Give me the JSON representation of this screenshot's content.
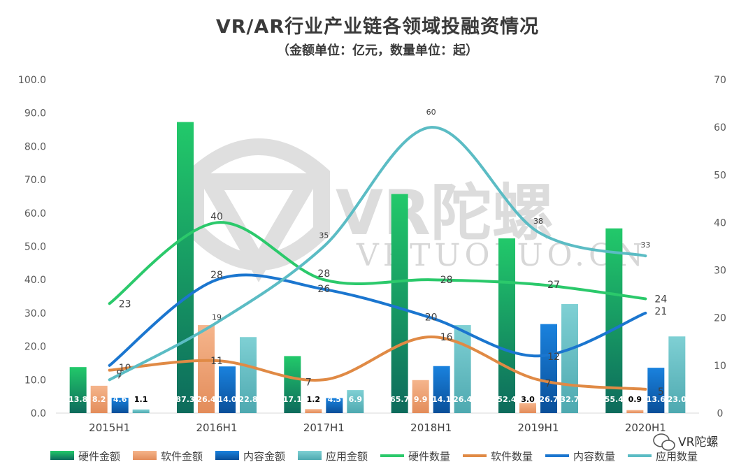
{
  "title": "VR/AR行业产业链各领域投融资情况",
  "subtitle": "（金额单位：亿元，数量单位：起）",
  "watermark": {
    "brand": "VR陀螺",
    "url": "VRTUOLUO.CN"
  },
  "badge": {
    "text": "VR陀螺",
    "icon": "wechat-icon"
  },
  "colors": {
    "hw_amount": "#1fa05a",
    "sw_amount": "#f0a679",
    "content_amount": "#0f6fc6",
    "app_amount": "#6fc3c8",
    "hw_count": "#2bc96b",
    "sw_count": "#e08a45",
    "content_count": "#1b76cf",
    "app_count": "#5bbcc4"
  },
  "chart_data": {
    "type": "bar+line",
    "categories": [
      "2015H1",
      "2016H1",
      "2017H1",
      "2018H1",
      "2019H1",
      "2020H1"
    ],
    "y_left": {
      "min": 0,
      "max": 100,
      "step": 10,
      "ticks": [
        "0.0",
        "10.0",
        "20.0",
        "30.0",
        "40.0",
        "50.0",
        "60.0",
        "70.0",
        "80.0",
        "90.0",
        "100.0"
      ]
    },
    "y_right": {
      "min": 0,
      "max": 70,
      "step": 10,
      "ticks": [
        "0",
        "10",
        "20",
        "30",
        "40",
        "50",
        "60",
        "70"
      ]
    },
    "bar_series": [
      {
        "name": "硬件金额",
        "values": [
          13.8,
          87.3,
          17.1,
          65.7,
          52.4,
          55.4
        ],
        "labels": [
          "13.8",
          "87.3",
          "17.1",
          "65.7",
          "52.4",
          "55.4"
        ]
      },
      {
        "name": "软件金额",
        "values": [
          8.2,
          26.4,
          1.2,
          9.9,
          3.0,
          0.9
        ],
        "labels": [
          "8.2",
          "26.4",
          "1.2",
          "9.9",
          "3.0",
          "0.9"
        ]
      },
      {
        "name": "内容金额",
        "values": [
          4.6,
          14.0,
          4.5,
          14.1,
          26.7,
          13.6
        ],
        "labels": [
          "4.6",
          "14.0",
          "4.5",
          "14.1",
          "26.7",
          "13.6"
        ]
      },
      {
        "name": "应用金额",
        "values": [
          1.1,
          22.8,
          6.9,
          26.4,
          32.7,
          23.0
        ],
        "labels": [
          "1.1",
          "22.8",
          "6.9",
          "26.4",
          "32.7",
          "23.0"
        ]
      }
    ],
    "line_series": [
      {
        "name": "硬件数量",
        "values": [
          23,
          40,
          28,
          28,
          27,
          24
        ],
        "labels": [
          "23",
          "40",
          "28",
          "28",
          "27",
          "24"
        ]
      },
      {
        "name": "软件数量",
        "values": [
          9,
          11,
          7,
          16,
          7,
          5
        ],
        "labels": [
          "9",
          "11",
          "7",
          "16",
          "7",
          "5"
        ]
      },
      {
        "name": "内容数量",
        "values": [
          10,
          28,
          26,
          20,
          12,
          21
        ],
        "labels": [
          "10",
          "28",
          "26",
          "20",
          "12",
          "21"
        ]
      },
      {
        "name": "应用数量",
        "values": [
          7,
          19,
          35,
          60,
          38,
          33
        ],
        "labels": [
          "7",
          "19",
          "35",
          "60",
          "38",
          "33"
        ]
      }
    ],
    "legend": [
      "硬件金额",
      "软件金额",
      "内容金额",
      "应用金额",
      "硬件数量",
      "软件数量",
      "内容数量",
      "应用数量"
    ],
    "legend_position": "bottom"
  }
}
